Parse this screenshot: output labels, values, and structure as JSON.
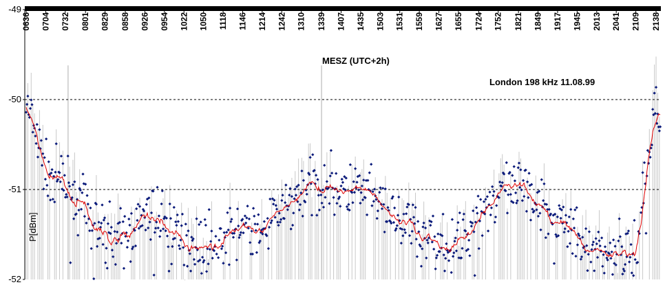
{
  "chart_data": {
    "type": "scatter",
    "title": "London 198 kHz  11.08.99",
    "xlabel": "MESZ  (UTC+2h)",
    "ylabel": "P[dBm]",
    "x_axis_position": "top",
    "ylim": [
      -52,
      -49
    ],
    "yticks": [
      -49,
      -50,
      -51,
      -52
    ],
    "gridlines_y": [
      -50,
      -51
    ],
    "grid": "dashed horizontal lines at -50 and -51",
    "legend": "none",
    "colors": {
      "points": "#0a1a7a",
      "smooth_line": "#e00000",
      "spikes": "#c8c8c8",
      "grid": "#000000"
    },
    "x_ticks": [
      "0636",
      "0704",
      "0732",
      "0801",
      "0829",
      "0858",
      "0926",
      "0954",
      "1022",
      "1050",
      "1118",
      "1146",
      "1214",
      "1242",
      "1310",
      "1339",
      "1407",
      "1435",
      "1503",
      "1531",
      "1559",
      "1627",
      "1655",
      "1724",
      "1752",
      "1821",
      "1849",
      "1917",
      "1945",
      "2013",
      "2041",
      "2109",
      "2138"
    ],
    "profile": {
      "description": "approximate received signal level (dBm) at each x tick, read from the smoothed curve",
      "x": [
        "0636",
        "0704",
        "0732",
        "0801",
        "0829",
        "0858",
        "0926",
        "0954",
        "1022",
        "1050",
        "1118",
        "1146",
        "1214",
        "1242",
        "1310",
        "1339",
        "1407",
        "1435",
        "1503",
        "1531",
        "1559",
        "1627",
        "1655",
        "1724",
        "1752",
        "1821",
        "1849",
        "1917",
        "1945",
        "2013",
        "2041",
        "2109",
        "2138"
      ],
      "y": [
        -50.05,
        -50.8,
        -50.95,
        -51.25,
        -51.5,
        -51.55,
        -51.3,
        -51.35,
        -51.55,
        -51.6,
        -51.55,
        -51.4,
        -51.5,
        -51.25,
        -51.0,
        -50.95,
        -51.0,
        -51.05,
        -51.15,
        -51.35,
        -51.5,
        -51.55,
        -51.65,
        -51.25,
        -51.05,
        -51.0,
        -51.1,
        -51.3,
        -51.55,
        -51.65,
        -51.7,
        -51.7,
        -50.05
      ]
    },
    "spikes_at": [
      "0736",
      "1339"
    ]
  }
}
